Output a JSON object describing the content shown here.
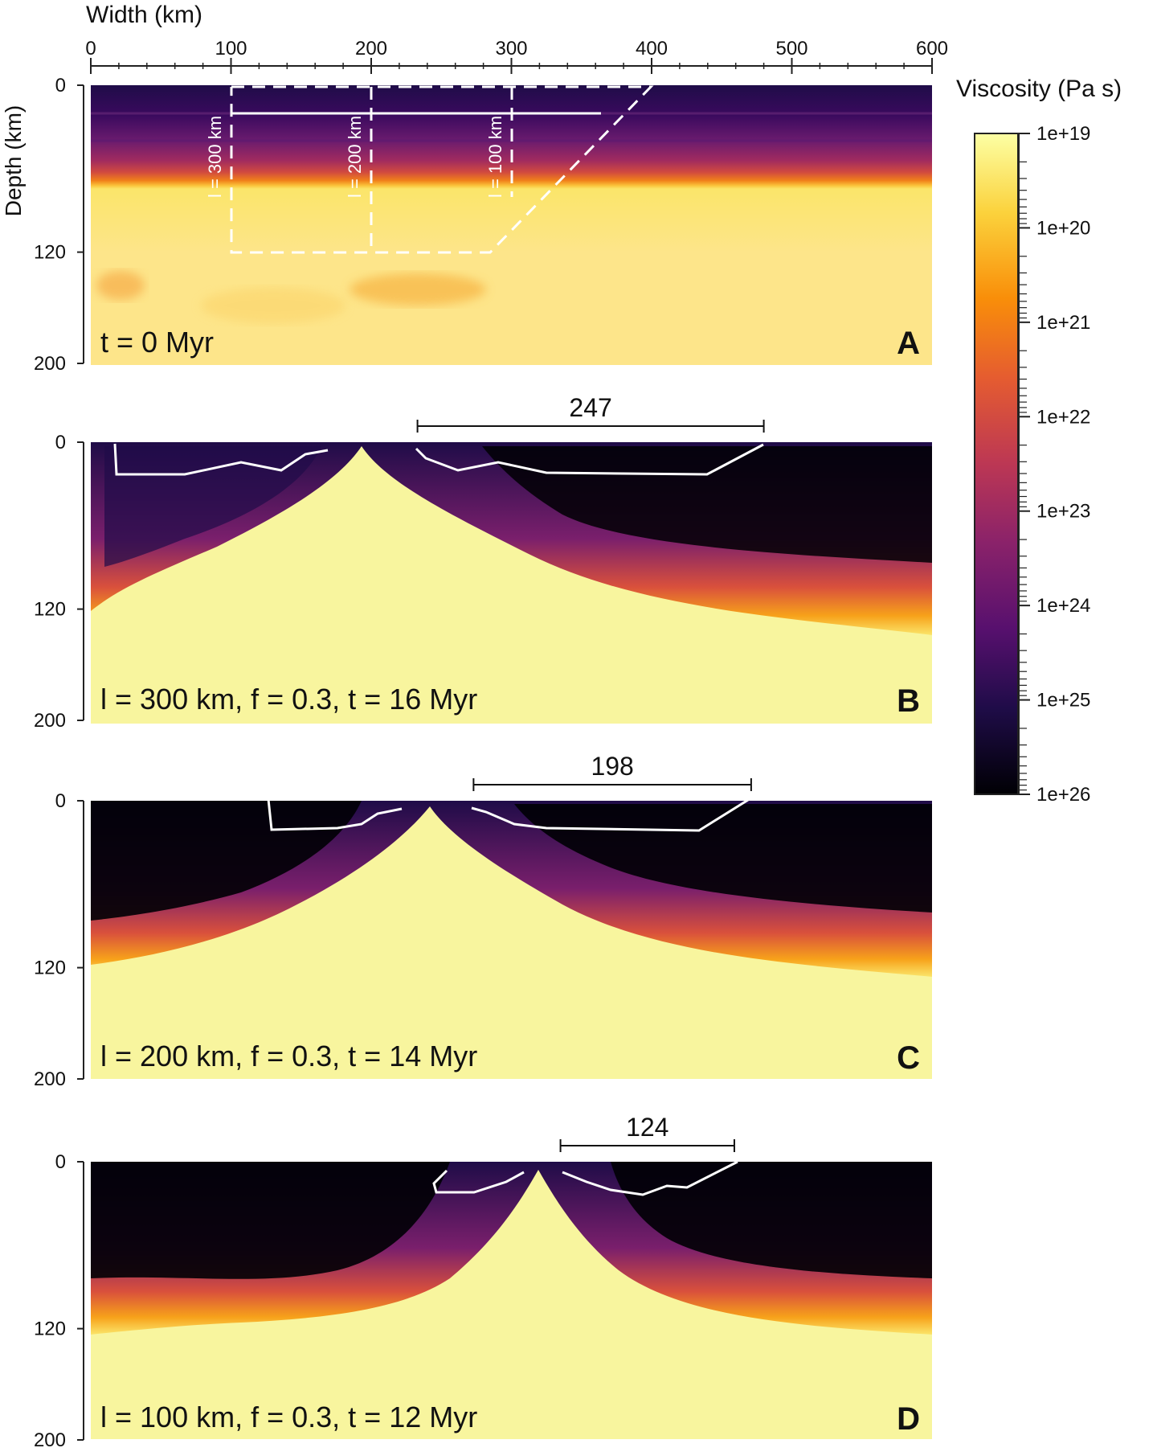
{
  "axes": {
    "x_title": "Width (km)",
    "x_ticks": [
      "0",
      "100",
      "200",
      "300",
      "400",
      "500",
      "600"
    ],
    "y_title": "Depth (km)",
    "y_ticks": [
      "0",
      "120",
      "200"
    ]
  },
  "colorbar": {
    "title": "Viscosity (Pa s)",
    "scale": "log",
    "labels": [
      "1e+19",
      "1e+20",
      "1e+21",
      "1e+22",
      "1e+23",
      "1e+24",
      "1e+25",
      "1e+26"
    ],
    "colors": [
      "#fcffa4",
      "#fbd23c",
      "#f98e09",
      "#e55c30",
      "#bc3754",
      "#8a226a",
      "#57106e",
      "#1f0c48",
      "#000004"
    ]
  },
  "panels": [
    {
      "letter": "A",
      "caption": "t = 0 Myr",
      "weak_zone_labels": [
        "l = 300 km",
        "l = 200 km",
        "l = 100 km"
      ]
    },
    {
      "letter": "B",
      "caption": "l = 300 km, f = 0.3, t = 16 Myr",
      "measure_label": "247",
      "measure_km": [
        233,
        480
      ]
    },
    {
      "letter": "C",
      "caption": "l = 200 km, f = 0.3, t = 14 Myr",
      "measure_label": "198",
      "measure_km": [
        273,
        471
      ]
    },
    {
      "letter": "D",
      "caption": "l = 100 km, f = 0.3, t = 12 Myr",
      "measure_label": "124",
      "measure_km": [
        335,
        459
      ]
    }
  ]
}
